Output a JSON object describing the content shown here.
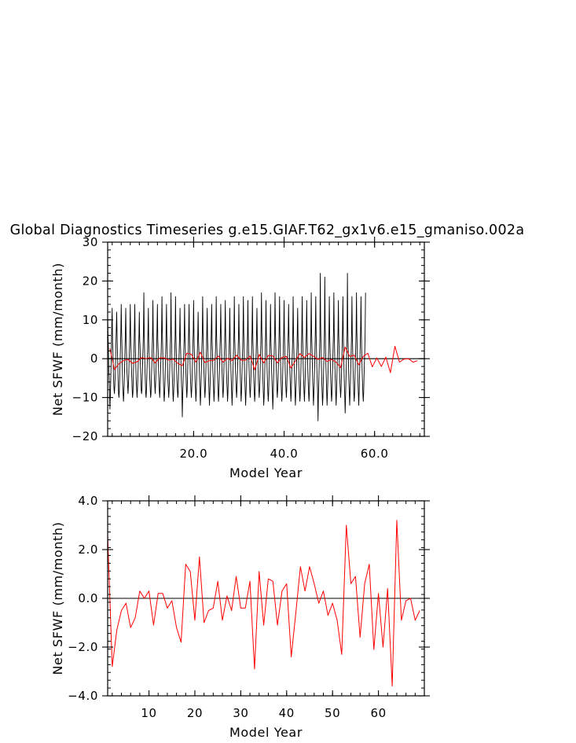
{
  "figure": {
    "title": "Global Diagnostics Timeseries g.e15.GIAF.T62_gx1v6.e15_gmaniso.002a"
  },
  "colors": {
    "monthly": "#000000",
    "annual": "#ff0000",
    "axes": "#000000",
    "background": "#ffffff"
  },
  "chart_data": [
    {
      "type": "line",
      "panel": "top",
      "xlabel": "Model Year",
      "ylabel": "Net SFWF (mm/month)",
      "xlim": [
        1,
        71
      ],
      "ylim": [
        -20,
        30
      ],
      "xticks": [
        20,
        40,
        60
      ],
      "xticklabels": [
        "20.0",
        "40.0",
        "60.0"
      ],
      "yticks": [
        -20,
        -10,
        0,
        10,
        20,
        30
      ],
      "yticklabels": [
        "−20",
        "−10",
        "0",
        "10",
        "20",
        "30"
      ],
      "zero_line": true,
      "series": [
        {
          "key": "monthly",
          "x_start": 1.0,
          "x_step": 0.083333,
          "values": [
            11,
            6,
            3,
            -3,
            -5,
            -9,
            -13,
            -10,
            -6,
            -2,
            3,
            9,
            13,
            4,
            2,
            -3,
            -6,
            -8,
            -9,
            -7,
            -4,
            -1,
            4,
            8,
            12,
            6,
            2,
            -2,
            -6,
            -9,
            -10,
            -8,
            -5,
            -1,
            3,
            7,
            14,
            7,
            3,
            -4,
            -7,
            -9,
            -11,
            -9,
            -6,
            -2,
            2,
            7,
            13,
            5,
            2,
            -3,
            -5,
            -7,
            -9,
            -7,
            -4,
            0,
            3,
            7,
            14,
            6,
            2,
            -2,
            -5,
            -8,
            -10,
            -9,
            -5,
            -1,
            3,
            8,
            14,
            5,
            1,
            -3,
            -6,
            -8,
            -10,
            -8,
            -5,
            -2,
            2,
            6,
            12,
            5,
            3,
            -2,
            -5,
            -8,
            -9,
            -8,
            -4,
            0,
            3,
            8,
            17,
            6,
            2,
            -3,
            -6,
            -9,
            -10,
            -8,
            -4,
            -1,
            3,
            7,
            13,
            4,
            1,
            -3,
            -6,
            -8,
            -10,
            -9,
            -5,
            -2,
            2,
            6,
            15,
            6,
            3,
            -2,
            -5,
            -7,
            -9,
            -7,
            -4,
            0,
            3,
            8,
            14,
            5,
            2,
            -3,
            -5,
            -8,
            -10,
            -8,
            -5,
            -1,
            2,
            7,
            16,
            7,
            3,
            -2,
            -6,
            -9,
            -11,
            -9,
            -6,
            -2,
            2,
            7,
            14,
            6,
            2,
            -3,
            -6,
            -8,
            -10,
            -8,
            -5,
            -1,
            3,
            6,
            17,
            7,
            2,
            -3,
            -6,
            -9,
            -11,
            -9,
            -6,
            -2,
            2,
            6,
            16,
            6,
            2,
            -3,
            -6,
            -8,
            -10,
            -9,
            -5,
            -1,
            3,
            7,
            13,
            4,
            1,
            -4,
            -7,
            -9,
            -15,
            -10,
            -6,
            -2,
            2,
            6,
            14,
            6,
            3,
            -2,
            -5,
            -8,
            -10,
            -8,
            -4,
            0,
            3,
            8,
            14,
            5,
            2,
            -3,
            -6,
            -8,
            -10,
            -8,
            -5,
            -1,
            3,
            7,
            15,
            6,
            2,
            -2,
            -6,
            -8,
            -11,
            -9,
            -5,
            -1,
            2,
            6,
            12,
            5,
            2,
            -3,
            -6,
            -9,
            -12,
            -9,
            -5,
            -1,
            3,
            7,
            16,
            7,
            3,
            -2,
            -5,
            -8,
            -10,
            -8,
            -5,
            -1,
            2,
            7,
            13,
            5,
            2,
            -3,
            -6,
            -9,
            -12,
            -9,
            -6,
            -2,
            3,
            8,
            14,
            5,
            2,
            -3,
            -5,
            -8,
            -11,
            -9,
            -5,
            -1,
            2,
            6,
            16,
            6,
            2,
            -3,
            -6,
            -9,
            -11,
            -9,
            -5,
            -1,
            3,
            7,
            14,
            6,
            3,
            -2,
            -5,
            -8,
            -10,
            -8,
            -4,
            0,
            3,
            7,
            15,
            6,
            2,
            -3,
            -6,
            -8,
            -11,
            -9,
            -5,
            -2,
            2,
            6,
            13,
            5,
            1,
            -3,
            -6,
            -9,
            -12,
            -9,
            -5,
            -1,
            3,
            7,
            16,
            6,
            2,
            -3,
            -5,
            -8,
            -10,
            -8,
            -5,
            -1,
            2,
            6,
            14,
            6,
            3,
            -2,
            -5,
            -8,
            -11,
            -9,
            -5,
            -1,
            3,
            7,
            16,
            7,
            2,
            -3,
            -6,
            -9,
            -12,
            -9,
            -6,
            -2,
            2,
            6,
            15,
            6,
            2,
            -2,
            -5,
            -8,
            -10,
            -8,
            -5,
            -1,
            3,
            7,
            16,
            6,
            2,
            -3,
            -6,
            -9,
            -11,
            -9,
            -5,
            -1,
            2,
            7,
            13,
            5,
            2,
            -3,
            -6,
            -8,
            -10,
            -8,
            -5,
            -1,
            3,
            8,
            17,
            7,
            3,
            -2,
            -6,
            -9,
            -12,
            -10,
            -6,
            -2,
            2,
            6,
            15,
            6,
            2,
            -3,
            -6,
            -9,
            -11,
            -9,
            -5,
            -1,
            2,
            6,
            14,
            5,
            2,
            -3,
            -6,
            -9,
            -13,
            -10,
            -6,
            -2,
            3,
            7,
            17,
            7,
            3,
            -2,
            -5,
            -8,
            -10,
            -8,
            -5,
            -1,
            3,
            8,
            16,
            6,
            2,
            -3,
            -6,
            -9,
            -11,
            -9,
            -5,
            -1,
            3,
            7,
            15,
            6,
            2,
            -3,
            -6,
            -8,
            -10,
            -8,
            -4,
            0,
            3,
            7,
            14,
            6,
            3,
            -2,
            -5,
            -8,
            -11,
            -9,
            -5,
            -1,
            2,
            6,
            16,
            7,
            2,
            -3,
            -6,
            -9,
            -12,
            -9,
            -6,
            -2,
            2,
            7,
            13,
            5,
            2,
            -3,
            -6,
            -9,
            -11,
            -9,
            -5,
            -1,
            3,
            7,
            16,
            6,
            2,
            -3,
            -6,
            -9,
            -11,
            -8,
            -5,
            -1,
            3,
            7,
            15,
            6,
            2,
            -3,
            -6,
            -9,
            -11,
            -9,
            -5,
            -1,
            2,
            6,
            17,
            7,
            3,
            -2,
            -6,
            -9,
            -12,
            -9,
            -6,
            -2,
            3,
            8,
            16,
            6,
            2,
            -3,
            -6,
            -9,
            -16,
            -10,
            -6,
            -2,
            2,
            6,
            22,
            9,
            3,
            -2,
            -6,
            -9,
            -12,
            -10,
            -6,
            -2,
            2,
            7,
            21,
            8,
            3,
            -2,
            -5,
            -9,
            -12,
            -9,
            -6,
            -2,
            2,
            7,
            16,
            6,
            2,
            -3,
            -6,
            -9,
            -11,
            -9,
            -5,
            -1,
            3,
            7,
            17,
            7,
            2,
            -3,
            -6,
            -9,
            -12,
            -9,
            -5,
            -1,
            3,
            7,
            15,
            6,
            2,
            -3,
            -6,
            -8,
            -10,
            -8,
            -5,
            -1,
            3,
            8,
            16,
            6,
            2,
            -3,
            -7,
            -10,
            -14,
            -10,
            -6,
            -2,
            2,
            6,
            22,
            8,
            3,
            -2,
            -6,
            -9,
            -12,
            -9,
            -6,
            -2,
            2,
            7,
            16,
            6,
            2,
            -3,
            -6,
            -9,
            -11,
            -9,
            -5,
            -1,
            3,
            7,
            17,
            7,
            2,
            -3,
            -6,
            -9,
            -12,
            -9,
            -5,
            -1,
            3,
            8,
            16,
            6,
            2,
            -3,
            -6,
            -9,
            -11,
            -9,
            -5,
            -1,
            2,
            7,
            17
          ]
        },
        {
          "key": "annual",
          "x_start": 1.5,
          "x_step": 1,
          "values": [
            2.6,
            -2.8,
            -1.3,
            -0.5,
            -0.2,
            -1.2,
            -0.8,
            0.3,
            0.0,
            0.3,
            -1.1,
            0.2,
            0.2,
            -0.4,
            -0.1,
            -1.2,
            -1.8,
            1.4,
            1.1,
            -0.9,
            1.7,
            -1.0,
            -0.5,
            -0.4,
            0.7,
            -0.9,
            0.1,
            -0.5,
            0.9,
            -0.4,
            -0.4,
            0.7,
            -2.9,
            1.1,
            -1.1,
            0.8,
            0.7,
            -1.1,
            0.3,
            0.6,
            -2.4,
            -0.6,
            1.3,
            0.3,
            1.3,
            0.6,
            -0.2,
            0.3,
            -0.7,
            -0.2,
            -0.9,
            -2.3,
            3.0,
            0.6,
            0.9,
            -1.6,
            0.6,
            1.4,
            -2.1,
            0.2,
            -2.0,
            0.4,
            -3.6,
            3.2,
            -0.9,
            -0.1,
            0.0,
            -0.9,
            -0.5
          ]
        }
      ]
    },
    {
      "type": "line",
      "panel": "bottom",
      "xlabel": "Model Year",
      "ylabel": "Net SFWF (mm/month)",
      "xlim": [
        1,
        70
      ],
      "ylim": [
        -4,
        4
      ],
      "xticks": [
        10,
        20,
        30,
        40,
        50,
        60
      ],
      "xticklabels": [
        "10",
        "20",
        "30",
        "40",
        "50",
        "60"
      ],
      "yticks": [
        -4,
        -2,
        0,
        2,
        4
      ],
      "yticklabels": [
        "−4.0",
        "−2.0",
        "0.0",
        "2.0",
        "4.0"
      ],
      "zero_line": true,
      "series": [
        {
          "key": "annual",
          "x_start": 1,
          "x_step": 1,
          "values": [
            2.6,
            -2.8,
            -1.3,
            -0.5,
            -0.2,
            -1.2,
            -0.8,
            0.3,
            0.0,
            0.3,
            -1.1,
            0.2,
            0.2,
            -0.4,
            -0.1,
            -1.2,
            -1.8,
            1.4,
            1.1,
            -0.9,
            1.7,
            -1.0,
            -0.5,
            -0.4,
            0.7,
            -0.9,
            0.1,
            -0.5,
            0.9,
            -0.4,
            -0.4,
            0.7,
            -2.9,
            1.1,
            -1.1,
            0.8,
            0.7,
            -1.1,
            0.3,
            0.6,
            -2.4,
            -0.6,
            1.3,
            0.3,
            1.3,
            0.6,
            -0.2,
            0.3,
            -0.7,
            -0.2,
            -0.9,
            -2.3,
            3.0,
            0.6,
            0.9,
            -1.6,
            0.6,
            1.4,
            -2.1,
            0.2,
            -2.0,
            0.4,
            -3.6,
            3.2,
            -0.9,
            -0.1,
            0.0,
            -0.9,
            -0.5
          ]
        }
      ]
    }
  ]
}
